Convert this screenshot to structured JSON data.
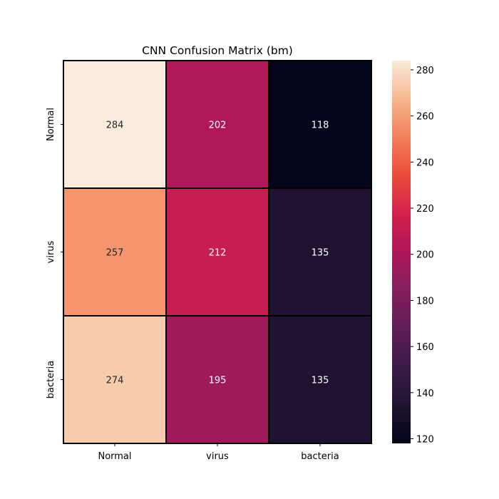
{
  "chart_data": {
    "type": "heatmap",
    "title": "CNN Confusion Matrix (bm)",
    "xlabel": "",
    "ylabel": "",
    "x_categories": [
      "Normal",
      "virus",
      "bacteria"
    ],
    "y_categories": [
      "Normal",
      "virus",
      "bacteria"
    ],
    "values": [
      [
        284,
        202,
        118
      ],
      [
        257,
        212,
        135
      ],
      [
        274,
        195,
        135
      ]
    ],
    "colorbar": {
      "min": 118,
      "max": 284,
      "ticks": [
        "120",
        "140",
        "160",
        "180",
        "200",
        "220",
        "240",
        "260",
        "280"
      ],
      "colormap": "rocket"
    },
    "grid": false,
    "cell_border_color": "#000000"
  }
}
